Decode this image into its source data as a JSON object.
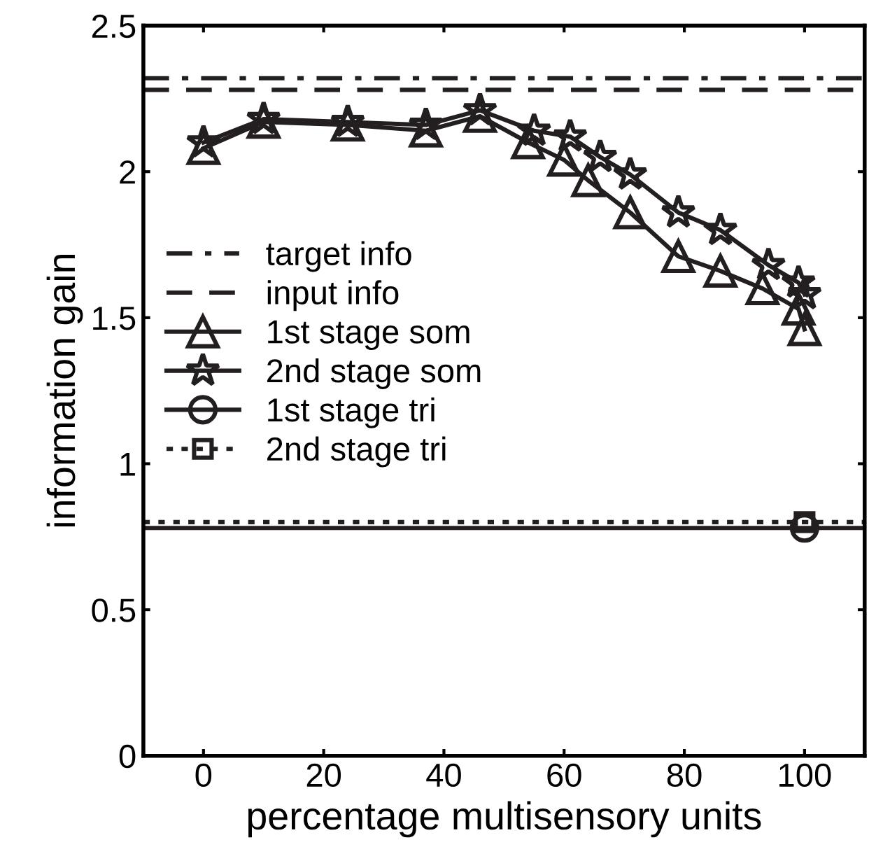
{
  "chart_data": {
    "type": "line",
    "xlabel": "percentage multisensory units",
    "ylabel": "information gain",
    "xlim": [
      -10,
      110
    ],
    "xticks": [
      0,
      20,
      40,
      60,
      80,
      100
    ],
    "ylim": [
      0,
      2.5
    ],
    "yticks": [
      0,
      0.5,
      1,
      1.5,
      2,
      2.5
    ],
    "grid": false,
    "legend": "left",
    "series": [
      {
        "name": "target info",
        "color": "#231f20",
        "x": [
          -10,
          110
        ],
        "values": [
          2.32,
          2.32
        ],
        "marker": "none",
        "line_style": "dashdot"
      },
      {
        "name": "input info",
        "color": "#231f20",
        "x": [
          -10,
          110
        ],
        "values": [
          2.28,
          2.28
        ],
        "marker": "none",
        "line_style": "dashed"
      },
      {
        "name": "1st stage som",
        "color": "#231f20",
        "x": [
          0,
          10,
          24,
          37,
          46,
          54,
          60,
          64,
          71,
          79,
          86,
          93,
          99,
          100
        ],
        "values": [
          2.08,
          2.17,
          2.16,
          2.14,
          2.19,
          2.1,
          2.04,
          1.97,
          1.86,
          1.71,
          1.66,
          1.6,
          1.53,
          1.46
        ],
        "marker": "triangle",
        "line_style": "solid"
      },
      {
        "name": "2nd stage som",
        "color": "#231f20",
        "x": [
          0,
          10,
          24,
          37,
          46,
          55,
          61,
          66,
          71,
          79,
          86,
          94,
          99,
          100
        ],
        "values": [
          2.1,
          2.18,
          2.17,
          2.16,
          2.21,
          2.14,
          2.12,
          2.05,
          1.99,
          1.86,
          1.8,
          1.68,
          1.62,
          1.58
        ],
        "marker": "star",
        "line_style": "solid"
      },
      {
        "name": "1st stage tri",
        "color": "#231f20",
        "x": [
          100
        ],
        "values": [
          0.78
        ],
        "marker": "circle",
        "line_style": "solid"
      },
      {
        "name": "2nd stage tri",
        "color": "#231f20",
        "x": [
          100
        ],
        "values": [
          0.8
        ],
        "marker": "square",
        "line_style": "dotted"
      }
    ],
    "ref_lines": [
      {
        "axis": "y",
        "value": 0.78,
        "color": "#231f20",
        "line_style": "solid"
      },
      {
        "axis": "y",
        "value": 0.8,
        "color": "#231f20",
        "line_style": "dotted"
      }
    ]
  }
}
